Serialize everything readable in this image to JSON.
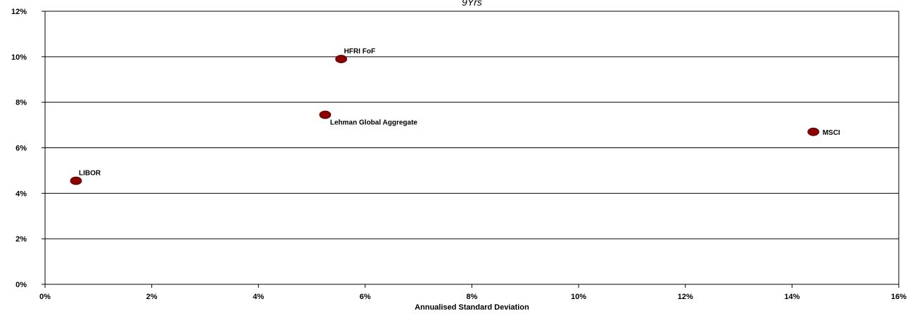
{
  "chart_data": {
    "type": "scatter",
    "title": "9Yrs",
    "xlabel": "Annualised Standard Deviation",
    "ylabel": "",
    "xlim": [
      0,
      16
    ],
    "ylim": [
      0,
      12
    ],
    "x_ticks": [
      0,
      2,
      4,
      6,
      8,
      10,
      12,
      14,
      16
    ],
    "y_ticks": [
      0,
      2,
      4,
      6,
      8,
      10,
      12
    ],
    "x_tick_labels": [
      "0%",
      "2%",
      "4%",
      "6%",
      "8%",
      "10%",
      "12%",
      "14%",
      "16%"
    ],
    "y_tick_labels": [
      "0%",
      "2%",
      "4%",
      "6%",
      "8%",
      "10%",
      "12%"
    ],
    "grid": "horizontal",
    "marker_color": "#8B0000",
    "points": [
      {
        "label": "HFRI FoF",
        "x": 5.55,
        "y": 9.9,
        "label_position": "above-right"
      },
      {
        "label": "Lehman Global Aggregate",
        "x": 5.25,
        "y": 7.45,
        "label_position": "below-right"
      },
      {
        "label": "MSCI",
        "x": 14.4,
        "y": 6.7,
        "label_position": "right"
      },
      {
        "label": "LIBOR",
        "x": 0.58,
        "y": 4.55,
        "label_position": "above-right"
      }
    ]
  }
}
